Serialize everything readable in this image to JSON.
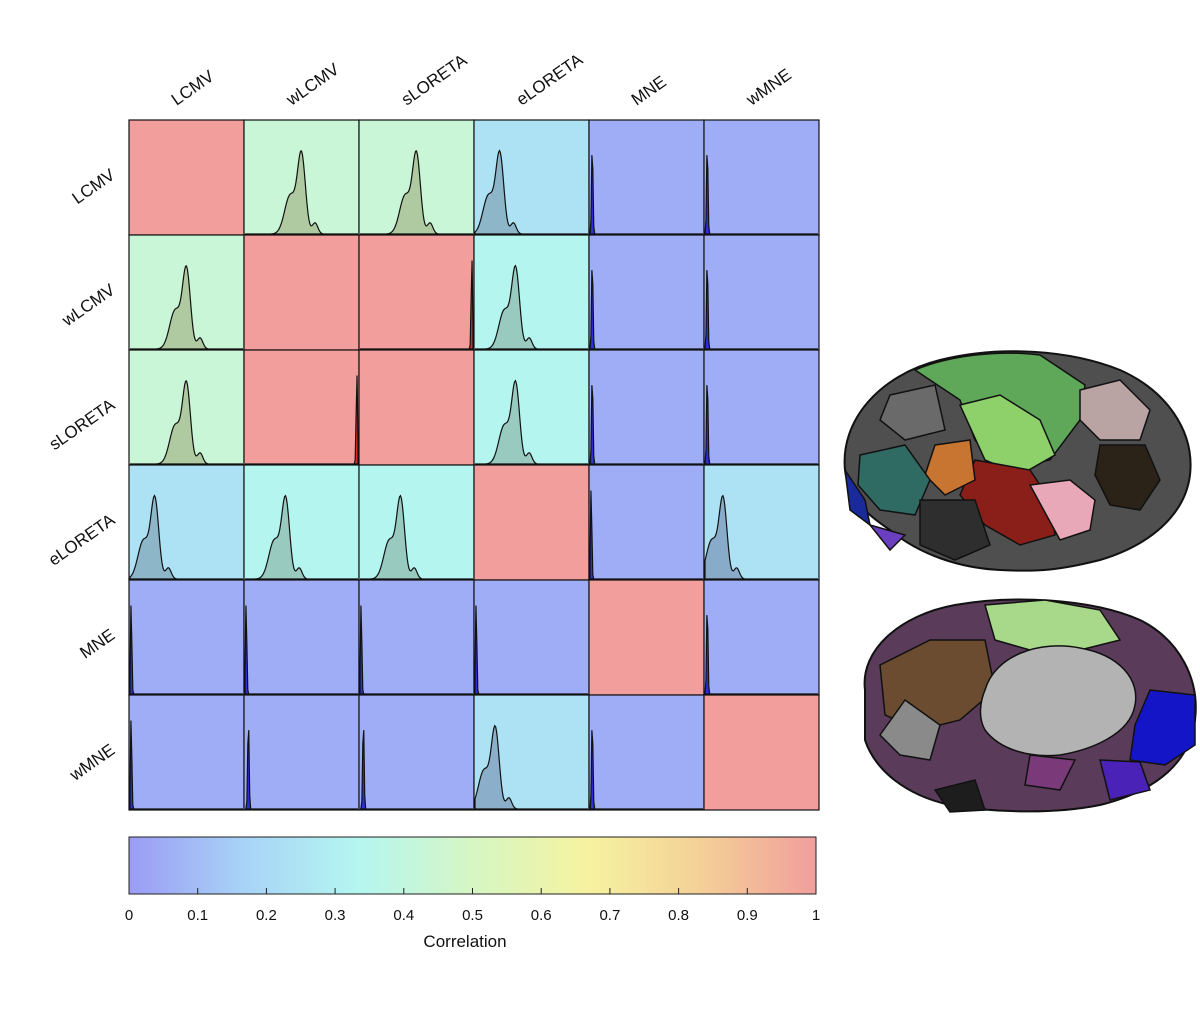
{
  "chart_data": {
    "type": "heatmap",
    "title": "",
    "methods": [
      "LCMV",
      "wLCMV",
      "sLORETA",
      "eLORETA",
      "MNE",
      "wMNE"
    ],
    "correlation_matrix": [
      [
        1.0,
        0.43,
        0.43,
        0.24,
        0.05,
        0.05
      ],
      [
        0.43,
        1.0,
        1.0,
        0.33,
        0.05,
        0.05
      ],
      [
        0.43,
        1.0,
        1.0,
        0.33,
        0.05,
        0.05
      ],
      [
        0.24,
        0.33,
        0.33,
        1.0,
        0.05,
        0.24
      ],
      [
        0.05,
        0.05,
        0.05,
        0.05,
        1.0,
        0.05
      ],
      [
        0.05,
        0.05,
        0.05,
        0.24,
        0.05,
        1.0
      ]
    ],
    "density_peaks": [
      [
        null,
        0.5,
        0.5,
        0.22,
        0.02,
        0.02
      ],
      [
        0.5,
        null,
        0.99,
        0.36,
        0.02,
        0.02
      ],
      [
        0.5,
        0.99,
        null,
        0.36,
        0.02,
        0.02
      ],
      [
        0.22,
        0.36,
        0.36,
        null,
        0.01,
        0.16
      ],
      [
        0.01,
        0.01,
        0.01,
        0.01,
        null,
        0.02
      ],
      [
        0.01,
        0.03,
        0.03,
        0.18,
        0.02,
        null
      ]
    ],
    "colorbar": {
      "label": "Correlation",
      "ticks": [
        "0",
        "0.1",
        "0.2",
        "0.3",
        "0.4",
        "0.5",
        "0.6",
        "0.7",
        "0.8",
        "0.9",
        "1"
      ],
      "range": [
        0,
        1
      ],
      "colors": [
        "#9b9cf5",
        "#a8d3f7",
        "#b4f6f0",
        "#d6f6c4",
        "#f6f3a0",
        "#f4d097",
        "#f19e9c"
      ]
    }
  }
}
